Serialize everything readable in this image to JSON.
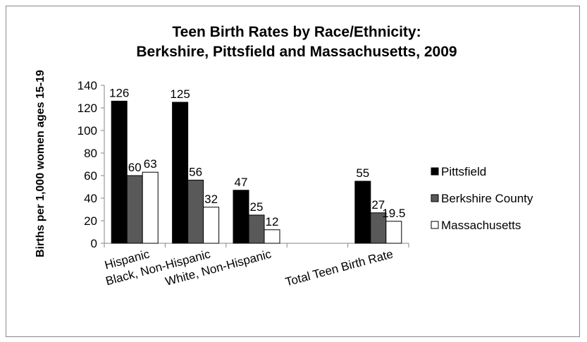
{
  "chart_data": {
    "type": "bar",
    "title_lines": [
      "Teen Birth Rates by Race/Ethnicity:",
      "Berkshire, Pittsfield and Massachusetts,  2009"
    ],
    "ylabel": "Births per 1,000  women ages 15-19",
    "xlabel": "",
    "ylim": [
      0,
      140
    ],
    "yticks": [
      0,
      20,
      40,
      60,
      80,
      100,
      120,
      140
    ],
    "categories": [
      "Hispanic",
      "Black, Non-Hispanic",
      "White, Non-Hispanic",
      "",
      "Total Teen Birth Rate"
    ],
    "series": [
      {
        "name": "Pittsfield",
        "color": "#000000",
        "values": [
          126,
          125,
          47,
          null,
          55
        ],
        "labels": [
          "126",
          "125",
          "47",
          "",
          "55"
        ]
      },
      {
        "name": "Berkshire County",
        "color": "#595959",
        "values": [
          60,
          56,
          25,
          null,
          27
        ],
        "labels": [
          "60",
          "56",
          "25",
          "",
          "27"
        ]
      },
      {
        "name": "Massachusetts",
        "color": "#ffffff",
        "values": [
          63,
          32,
          12,
          null,
          19.5
        ],
        "labels": [
          "63",
          "32",
          "12",
          "",
          "19.5"
        ]
      }
    ],
    "legend_position": "right",
    "grid": false
  }
}
